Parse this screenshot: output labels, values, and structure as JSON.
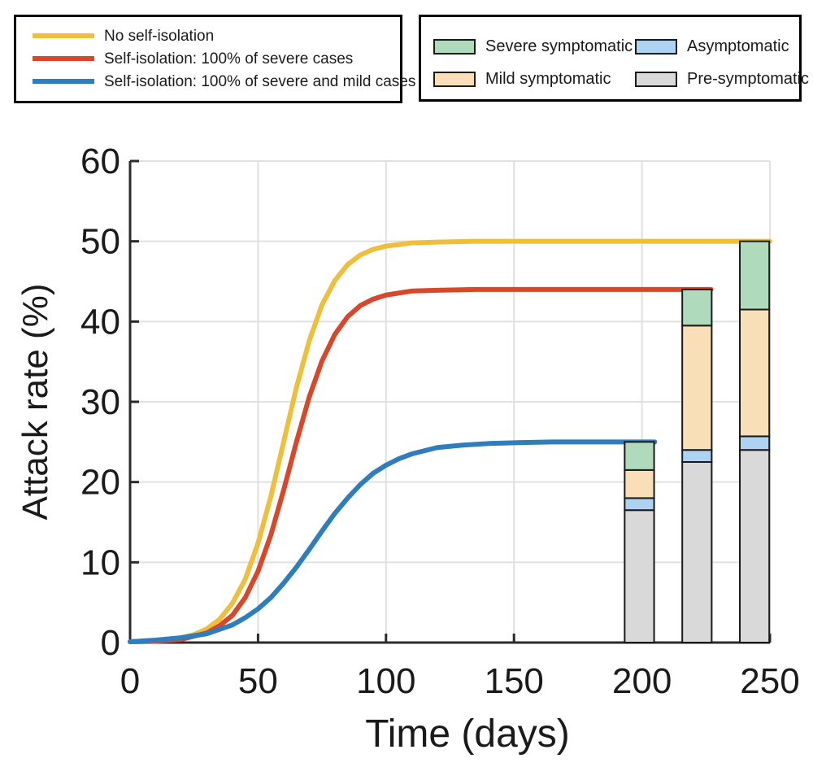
{
  "legend_scenarios": {
    "items": [
      {
        "label": "No self-isolation",
        "color": "#EFBE3C"
      },
      {
        "label": "Self-isolation: 100% of severe cases",
        "color": "#D9472B"
      },
      {
        "label": "Self-isolation: 100% of severe and mild cases",
        "color": "#2F7DBC"
      }
    ]
  },
  "legend_compartments": {
    "items": [
      {
        "label": "Severe symptomatic",
        "color": "#AFDABC"
      },
      {
        "label": "Asymptomatic",
        "color": "#AED3F2"
      },
      {
        "label": "Mild symptomatic",
        "color": "#F8DFB8"
      },
      {
        "label": "Pre-symptomatic",
        "color": "#D9D9D9"
      }
    ]
  },
  "chart_data": {
    "type": "line+stacked-bar",
    "title": "",
    "xlabel": "Time (days)",
    "ylabel": "Attack rate (%)",
    "xlim": [
      0,
      250
    ],
    "ylim": [
      0,
      60
    ],
    "xticks": [
      0,
      50,
      100,
      150,
      200,
      250
    ],
    "yticks": [
      0,
      10,
      20,
      30,
      40,
      50,
      60
    ],
    "grid": true,
    "legend_position": "top",
    "line_series": [
      {
        "name": "No self-isolation",
        "color": "#EFBE3C",
        "plateau": 50,
        "x": [
          0,
          10,
          20,
          25,
          30,
          35,
          40,
          45,
          50,
          55,
          60,
          65,
          70,
          75,
          80,
          85,
          90,
          95,
          100,
          110,
          120,
          135,
          150,
          175,
          200,
          225,
          250
        ],
        "y": [
          0.1,
          0.2,
          0.6,
          1.0,
          1.7,
          2.9,
          4.9,
          7.9,
          12.4,
          18.2,
          25.0,
          31.8,
          37.6,
          42.1,
          45.1,
          47.1,
          48.3,
          49.0,
          49.4,
          49.8,
          49.9,
          50,
          50,
          50,
          50,
          50,
          50
        ]
      },
      {
        "name": "Self-isolation: 100% of severe cases",
        "color": "#D9472B",
        "plateau": 44,
        "x": [
          0,
          10,
          20,
          30,
          35,
          40,
          45,
          50,
          55,
          60,
          65,
          70,
          75,
          80,
          85,
          90,
          95,
          100,
          110,
          120,
          135,
          150,
          175,
          200,
          227
        ],
        "y": [
          0.1,
          0.15,
          0.4,
          1.2,
          2.1,
          3.4,
          5.6,
          8.9,
          13.4,
          19.0,
          25.0,
          30.6,
          35.1,
          38.4,
          40.6,
          42.0,
          42.8,
          43.3,
          43.8,
          43.9,
          44,
          44,
          44,
          44,
          44
        ]
      },
      {
        "name": "Self-isolation: 100% of severe and mild cases",
        "color": "#2F7DBC",
        "plateau": 25,
        "x": [
          0,
          10,
          20,
          30,
          40,
          45,
          50,
          55,
          60,
          65,
          70,
          75,
          80,
          85,
          90,
          95,
          100,
          105,
          110,
          120,
          130,
          140,
          150,
          165,
          185,
          205
        ],
        "y": [
          0.1,
          0.3,
          0.6,
          1.1,
          2.2,
          3.1,
          4.2,
          5.6,
          7.4,
          9.4,
          11.6,
          13.9,
          16.1,
          18.0,
          19.7,
          21.1,
          22.1,
          22.9,
          23.5,
          24.3,
          24.6,
          24.8,
          24.9,
          25,
          25,
          25
        ]
      }
    ],
    "bars": {
      "x_days": [
        199,
        221.5,
        244
      ],
      "width_days": 11.5,
      "totals": [
        25,
        44,
        50
      ],
      "segments_bottom_to_top": [
        {
          "name": "Pre-symptomatic",
          "color": "#D9D9D9",
          "values": [
            16.5,
            22.5,
            24.0
          ]
        },
        {
          "name": "Asymptomatic",
          "color": "#AED3F2",
          "values": [
            1.5,
            1.5,
            1.7
          ]
        },
        {
          "name": "Mild symptomatic",
          "color": "#F8DFB8",
          "values": [
            3.5,
            15.5,
            15.8
          ]
        },
        {
          "name": "Severe symptomatic",
          "color": "#AFDABC",
          "values": [
            3.5,
            4.5,
            8.5
          ]
        }
      ]
    }
  }
}
